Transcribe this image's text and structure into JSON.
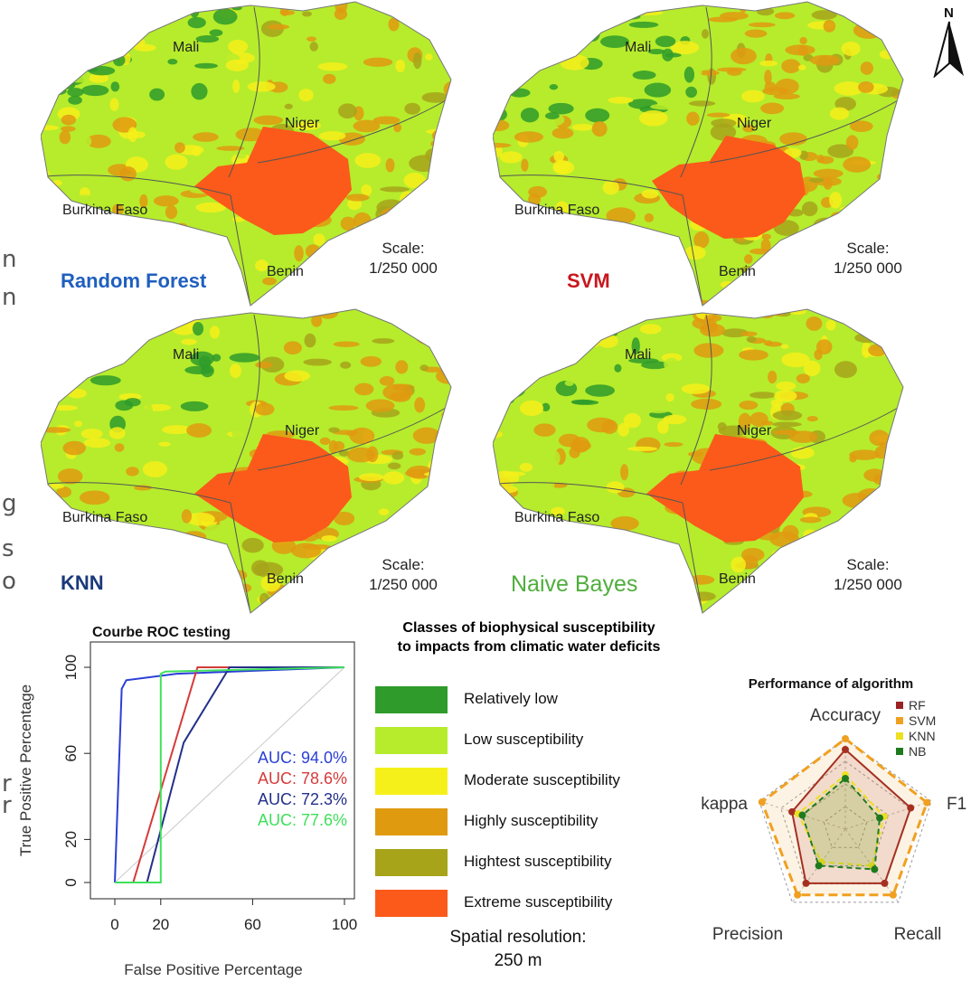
{
  "north_arrow": {
    "label": "N",
    "icon": "north-arrow-icon"
  },
  "edge_glyphs": [
    "n",
    "n",
    "g",
    "s",
    "o",
    "r",
    "r"
  ],
  "class_colors": [
    "#2e9b2a",
    "#b6ec2c",
    "#f6f01a",
    "#e09a10",
    "#a7a41a",
    "#fb5a1a"
  ],
  "maps": [
    {
      "title": "Random Forest",
      "title_color": "#1f5fbf",
      "scale_label": "Scale:",
      "scale_value": "1/250 000",
      "countries": {
        "mali": "Mali",
        "niger": "Niger",
        "burkina": "Burkina Faso",
        "benin": "Benin"
      }
    },
    {
      "title": "SVM",
      "title_color": "#c8171e",
      "scale_label": "Scale:",
      "scale_value": "1/250 000",
      "countries": {
        "mali": "Mali",
        "niger": "Niger",
        "burkina": "Burkina Faso",
        "benin": "Benin"
      }
    },
    {
      "title": "KNN",
      "title_color": "#1b3a7a",
      "scale_label": "Scale:",
      "scale_value": "1/250 000",
      "countries": {
        "mali": "Mali",
        "niger": "Niger",
        "burkina": "Burkina Faso",
        "benin": "Benin"
      }
    },
    {
      "title": "Naive Bayes",
      "title_color": "#4fae3c",
      "scale_label": "Scale:",
      "scale_value": "1/250 000",
      "countries": {
        "mali": "Mali",
        "niger": "Niger",
        "burkina": "Burkina Faso",
        "benin": "Benin"
      }
    }
  ],
  "legend": {
    "title_line1": "Classes of biophysical susceptibility",
    "title_line2": "to impacts from climatic water deficits",
    "items": [
      {
        "label": "Relatively low",
        "color": "#2e9b2a"
      },
      {
        "label": "Low susceptibility",
        "color": "#b6ec2c"
      },
      {
        "label": "Moderate susceptibility",
        "color": "#f6f01a"
      },
      {
        "label": "Highly susceptibility",
        "color": "#e09a10"
      },
      {
        "label": "Hightest susceptibility",
        "color": "#a7a41a"
      },
      {
        "label": "Extreme susceptibility",
        "color": "#fb5a1a"
      }
    ],
    "resolution_line1": "Spatial resolution:",
    "resolution_line2": "250 m"
  },
  "chart_data": [
    {
      "type": "line",
      "title": "Courbe ROC testing",
      "xlabel": "False Positive Percentage",
      "ylabel": "True Positive Percentage",
      "xlim": [
        0,
        100
      ],
      "ylim": [
        0,
        100
      ],
      "xticks": [
        "0",
        "20",
        "60",
        "100"
      ],
      "yticks": [
        "0",
        "20",
        "60",
        "100"
      ],
      "series": [
        {
          "color": "#2b3fd6",
          "auc_label": "AUC: 94.0%",
          "x": [
            0,
            0,
            3,
            5,
            27,
            100
          ],
          "y": [
            0,
            0,
            90,
            94,
            97,
            100
          ]
        },
        {
          "color": "#d63a3a",
          "auc_label": "AUC: 78.6%",
          "x": [
            0,
            8,
            22,
            36,
            100
          ],
          "y": [
            0,
            0,
            50,
            100,
            100
          ]
        },
        {
          "color": "#23308a",
          "auc_label": "AUC: 72.3%",
          "x": [
            0,
            14,
            30,
            50,
            100
          ],
          "y": [
            0,
            0,
            65,
            100,
            100
          ]
        },
        {
          "color": "#3ee05a",
          "auc_label": "AUC: 77.6%",
          "x": [
            0,
            20,
            20,
            22,
            100
          ],
          "y": [
            0,
            0,
            97,
            98,
            100
          ]
        }
      ],
      "diagonal": {
        "x": [
          0,
          100
        ],
        "y": [
          0,
          100
        ],
        "color": "#c8c8c8"
      }
    },
    {
      "type": "radar",
      "title": "Performance of algorithm",
      "axes": [
        "Accuracy",
        "F1",
        "Recall",
        "Precision",
        "kappa"
      ],
      "rmax": 1.0,
      "series": [
        {
          "name": "RF",
          "color": "#9b2222",
          "values": [
            0.88,
            0.76,
            0.74,
            0.74,
            0.62
          ]
        },
        {
          "name": "SVM",
          "color": "#f0a020",
          "values": [
            1.0,
            0.95,
            0.9,
            0.9,
            0.97
          ]
        },
        {
          "name": "KNN",
          "color": "#ede020",
          "values": [
            0.6,
            0.45,
            0.5,
            0.45,
            0.55
          ]
        },
        {
          "name": "NB",
          "color": "#1f7a1f",
          "values": [
            0.56,
            0.4,
            0.55,
            0.5,
            0.5
          ]
        }
      ]
    }
  ]
}
